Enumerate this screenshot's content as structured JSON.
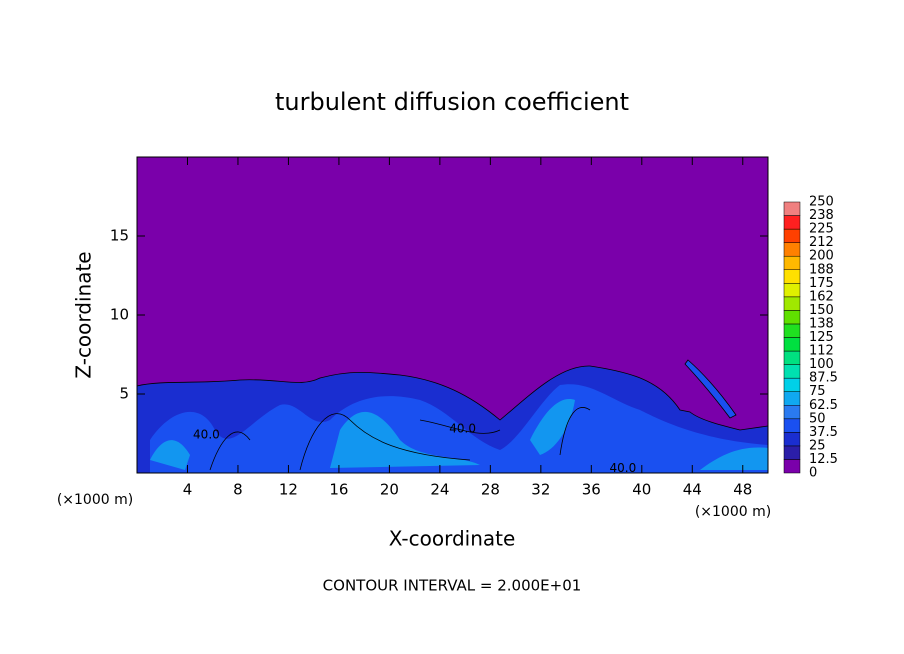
{
  "chart_data": {
    "type": "contour",
    "title": "turbulent diffusion coefficient",
    "xlabel": "X-coordinate",
    "ylabel": "Z-coordinate",
    "x_unit_label": "(×1000 m)",
    "footer": "CONTOUR INTERVAL = 2.000E+01",
    "xlim": [
      0,
      50
    ],
    "xticks": [
      4,
      8,
      12,
      16,
      20,
      24,
      28,
      32,
      36,
      40,
      44,
      48
    ],
    "ylim": [
      0,
      20
    ],
    "yticks": [
      5,
      10,
      15
    ],
    "levels": [
      0,
      12.5,
      25,
      37.5,
      50,
      62.5,
      75,
      87.5,
      100,
      112,
      125,
      138,
      150,
      162,
      175,
      188,
      200,
      212,
      225,
      238,
      250
    ],
    "colors": [
      "#7a00aa",
      "#2b1ea8",
      "#1a2ed0",
      "#1a50f0",
      "#2a7af0",
      "#10a8f0",
      "#00d0e8",
      "#00e0b0",
      "#00e080",
      "#00e040",
      "#20e020",
      "#60e000",
      "#a0e800",
      "#e0f000",
      "#ffe000",
      "#ffb800",
      "#ff8000",
      "#ff4000",
      "#ff2020",
      "#f08080"
    ],
    "annotations": [
      {
        "text": "40.0",
        "x": 5.5,
        "y": 2.4
      },
      {
        "text": "40.0",
        "x": 25.8,
        "y": 2.8
      },
      {
        "text": "40.0",
        "x": 38.5,
        "y": 0.3
      }
    ]
  }
}
